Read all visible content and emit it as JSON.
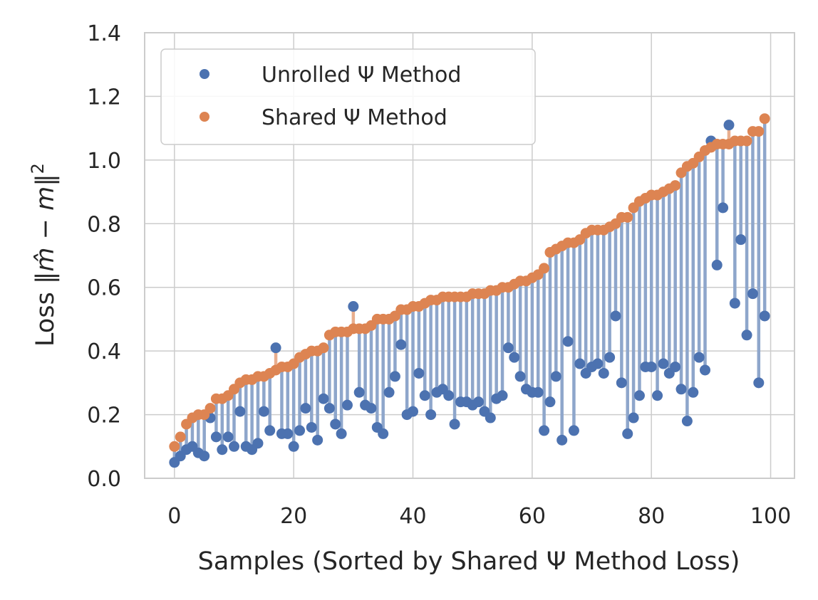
{
  "chart_data": {
    "type": "scatter",
    "xlabel": "Samples (Sorted by Shared Ψ Method Loss)",
    "ylabel_prefix": "Loss ",
    "ylabel_math": "‖m̂ − m‖",
    "ylabel_sup": "2",
    "xlim": [
      -5,
      104
    ],
    "ylim": [
      0.0,
      1.4
    ],
    "x_ticks": [
      "0",
      "20",
      "40",
      "60",
      "80",
      "100"
    ],
    "y_ticks": [
      "0.0",
      "0.2",
      "0.4",
      "0.6",
      "0.8",
      "1.0",
      "1.2",
      "1.4"
    ],
    "grid": true,
    "legend_position": "top-left",
    "colors": {
      "unrolled": "#4c72b0",
      "shared": "#dd8452",
      "stem_blue": "#8ea6cb",
      "stem_orange": "#e9ae8e",
      "grid": "#cccccc",
      "axis": "#cccccc"
    },
    "series": [
      {
        "name": "Unrolled Ψ Method",
        "values": [
          0.05,
          0.07,
          0.09,
          0.1,
          0.08,
          0.07,
          0.19,
          0.13,
          0.09,
          0.13,
          0.1,
          0.21,
          0.1,
          0.09,
          0.11,
          0.21,
          0.15,
          0.41,
          0.14,
          0.14,
          0.1,
          0.15,
          0.22,
          0.16,
          0.12,
          0.25,
          0.22,
          0.17,
          0.14,
          0.23,
          0.54,
          0.27,
          0.23,
          0.22,
          0.16,
          0.14,
          0.27,
          0.32,
          0.42,
          0.2,
          0.21,
          0.33,
          0.26,
          0.2,
          0.27,
          0.28,
          0.26,
          0.17,
          0.24,
          0.24,
          0.23,
          0.24,
          0.21,
          0.19,
          0.25,
          0.26,
          0.41,
          0.38,
          0.32,
          0.28,
          0.27,
          0.27,
          0.15,
          0.24,
          0.32,
          0.12,
          0.43,
          0.15,
          0.36,
          0.33,
          0.35,
          0.36,
          0.33,
          0.38,
          0.51,
          0.3,
          0.14,
          0.19,
          0.26,
          0.35,
          0.35,
          0.26,
          0.36,
          0.33,
          0.35,
          0.28,
          0.18,
          0.27,
          0.38,
          0.34,
          1.06,
          0.67,
          0.85,
          1.11,
          0.55,
          0.75,
          0.45,
          0.58,
          0.3,
          0.51
        ]
      },
      {
        "name": "Shared Ψ Method",
        "values": [
          0.1,
          0.13,
          0.17,
          0.19,
          0.2,
          0.2,
          0.22,
          0.25,
          0.25,
          0.26,
          0.28,
          0.3,
          0.31,
          0.31,
          0.32,
          0.32,
          0.33,
          0.34,
          0.35,
          0.35,
          0.36,
          0.38,
          0.39,
          0.4,
          0.4,
          0.41,
          0.45,
          0.46,
          0.46,
          0.46,
          0.47,
          0.47,
          0.47,
          0.48,
          0.5,
          0.5,
          0.5,
          0.51,
          0.53,
          0.53,
          0.54,
          0.54,
          0.55,
          0.56,
          0.56,
          0.57,
          0.57,
          0.57,
          0.57,
          0.57,
          0.58,
          0.58,
          0.58,
          0.59,
          0.59,
          0.6,
          0.6,
          0.61,
          0.62,
          0.62,
          0.63,
          0.64,
          0.66,
          0.71,
          0.72,
          0.73,
          0.74,
          0.74,
          0.75,
          0.77,
          0.78,
          0.78,
          0.78,
          0.79,
          0.8,
          0.82,
          0.82,
          0.85,
          0.87,
          0.88,
          0.89,
          0.89,
          0.9,
          0.91,
          0.92,
          0.96,
          0.98,
          0.99,
          1.01,
          1.03,
          1.04,
          1.05,
          1.05,
          1.05,
          1.06,
          1.06,
          1.06,
          1.09,
          1.09,
          1.13
        ]
      }
    ]
  }
}
